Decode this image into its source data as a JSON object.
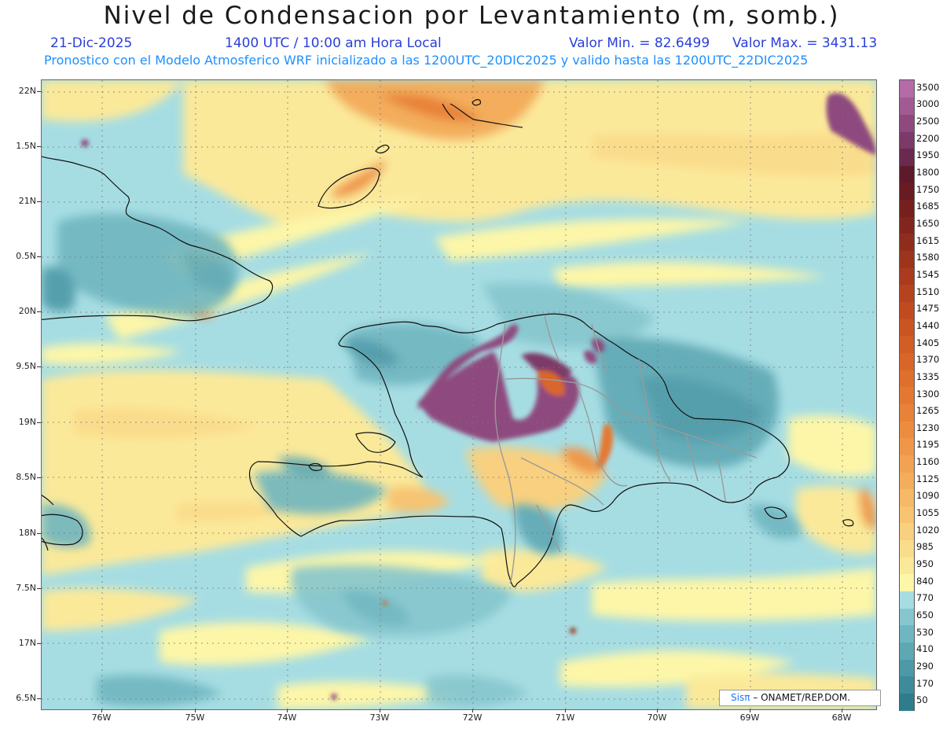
{
  "header": {
    "title": "Nivel de Condensacion por Levantamiento (m, somb.)",
    "date": "21-Dic-2025",
    "time": "1400 UTC / 10:00 am Hora Local",
    "min_label": "Valor Min. = 82.6499",
    "max_label": "Valor Max. = 3431.13",
    "forecast_line": "Pronostico con el Modelo Atmosferico WRF inicializado a las 1200UTC_20DIC2025 y valido hasta las  1200UTC_22DIC2025"
  },
  "axes": {
    "lat_ticks": [
      "22N",
      "1.5N",
      "21N",
      "0.5N",
      "20N",
      "9.5N",
      "19N",
      "8.5N",
      "18N",
      "7.5N",
      "17N",
      "6.5N"
    ],
    "lon_ticks": [
      "76W",
      "75W",
      "74W",
      "73W",
      "72W",
      "71W",
      "70W",
      "69W",
      "68W"
    ]
  },
  "colorbar": {
    "levels": [
      "50",
      "170",
      "290",
      "410",
      "530",
      "650",
      "770",
      "840",
      "950",
      "985",
      "1020",
      "1055",
      "1090",
      "1125",
      "1160",
      "1195",
      "1230",
      "1265",
      "1300",
      "1335",
      "1370",
      "1405",
      "1440",
      "1475",
      "1510",
      "1545",
      "1580",
      "1615",
      "1650",
      "1685",
      "1750",
      "1800",
      "1950",
      "2200",
      "2500",
      "3000",
      "3500"
    ],
    "colors": [
      "#2f7d8c",
      "#3d8c9b",
      "#4d99a7",
      "#5ea8b4",
      "#70b6c0",
      "#86c6cd",
      "#a6dde3",
      "#fdf6a8",
      "#fbe99a",
      "#fadd8c",
      "#f8d07f",
      "#f6c472",
      "#f5b967",
      "#f3ad5c",
      "#f1a252",
      "#ef9749",
      "#ec8c40",
      "#e88238",
      "#e47832",
      "#df6f2d",
      "#d96629",
      "#d25d25",
      "#ca5422",
      "#c14b20",
      "#b6431f",
      "#aa3b1e",
      "#9d341d",
      "#8f2d1d",
      "#82261d",
      "#75201e",
      "#681b20",
      "#5c1a2a",
      "#6a2a4e",
      "#7b3a68",
      "#8e4a7e",
      "#a15b93",
      "#b46ba8"
    ]
  },
  "credit": {
    "brand": "Sisπ",
    "text": "– ONAMET/REP.DOM."
  }
}
